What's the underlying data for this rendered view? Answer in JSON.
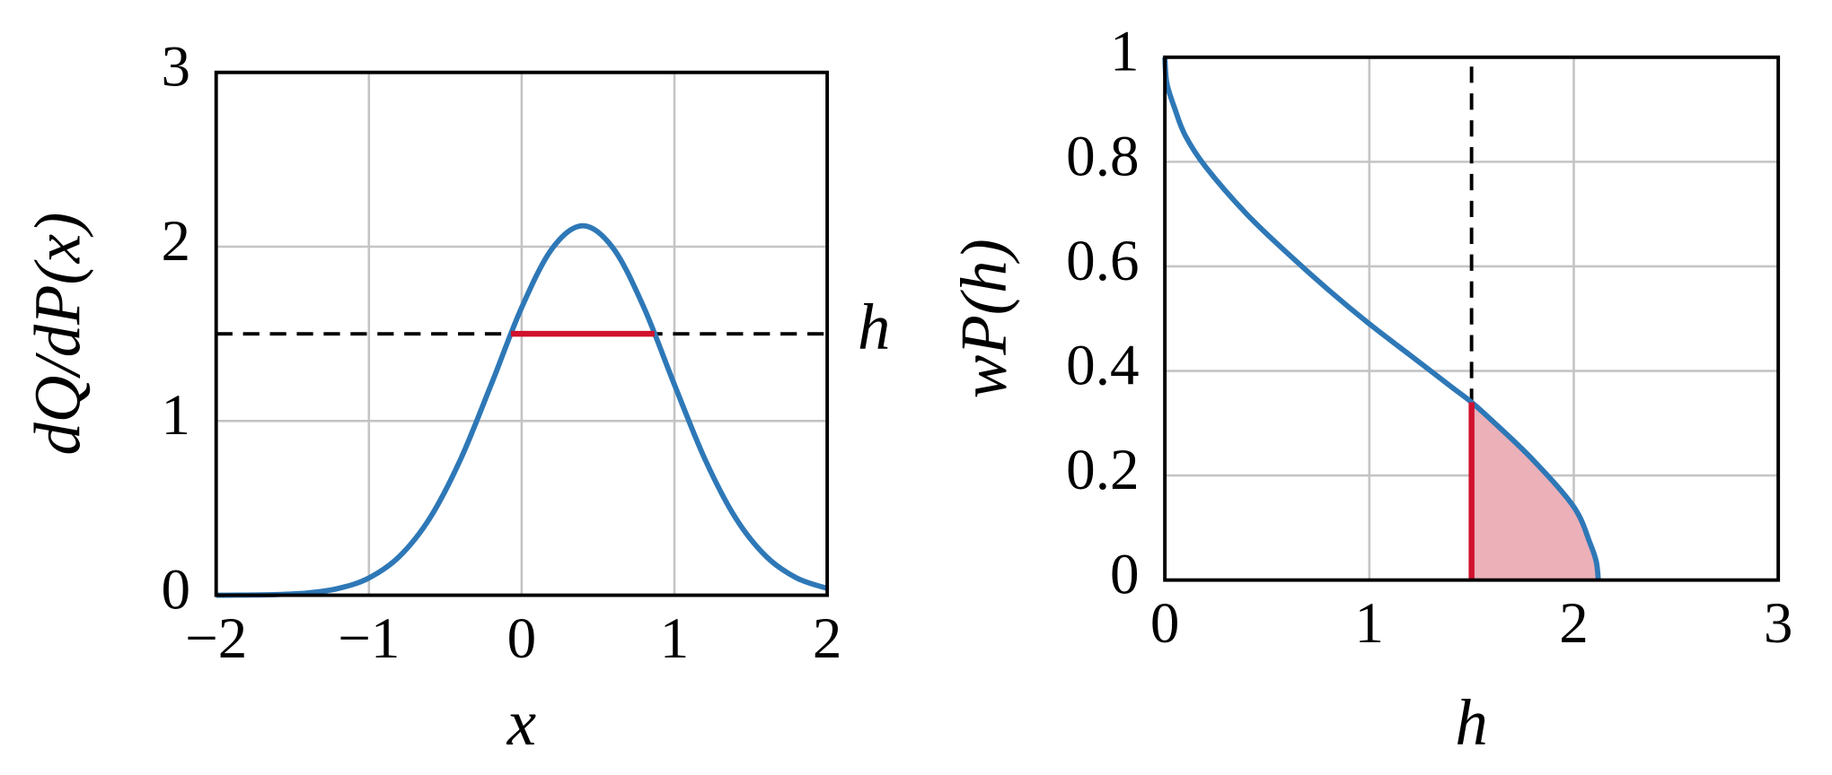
{
  "chart_data": [
    {
      "type": "line",
      "x_label": "x",
      "y_label": "dQ/dP(x)",
      "xlim": [
        -2,
        2
      ],
      "ylim": [
        0,
        3
      ],
      "xticks": [
        {
          "value": -2,
          "label": "−2"
        },
        {
          "value": -1,
          "label": "−1"
        },
        0,
        1,
        2
      ],
      "yticks": [
        0,
        1,
        2,
        3
      ],
      "grid": true,
      "x": [
        -2,
        -1.8,
        -1.6,
        -1.4,
        -1.2,
        -1,
        -0.8,
        -0.6,
        -0.4,
        -0.2,
        0,
        0.2,
        0.4,
        0.6,
        0.8,
        1,
        1.2,
        1.4,
        1.6,
        1.8,
        2
      ],
      "series": [
        {
          "color": "#2e78b7",
          "values": [
            0.0,
            0.001,
            0.004,
            0.013,
            0.039,
            0.099,
            0.223,
            0.444,
            0.78,
            1.208,
            1.651,
            1.99,
            2.12,
            1.99,
            1.651,
            1.208,
            0.78,
            0.444,
            0.223,
            0.099,
            0.039
          ]
        }
      ],
      "hline": {
        "y": 1.5,
        "label": "h",
        "color": "#000000"
      },
      "highlight": {
        "x": [
          -0.07,
          0.87
        ],
        "y": [
          1.5,
          1.5
        ],
        "color": "#d0122e"
      }
    },
    {
      "type": "line",
      "x_label": "h",
      "y_label": "wP(h)",
      "xlim": [
        0,
        3
      ],
      "ylim": [
        0,
        1
      ],
      "xticks": [
        0,
        1,
        2,
        3
      ],
      "yticks": [
        0,
        0.2,
        0.4,
        0.6,
        0.8,
        1
      ],
      "grid": true,
      "x": [
        0,
        0.01,
        0.05,
        0.1,
        0.2,
        0.4,
        0.6,
        0.8,
        1,
        1.2,
        1.4,
        1.5,
        1.6,
        1.8,
        2,
        2.08,
        2.11,
        2.12
      ],
      "series": [
        {
          "color": "#2e78b7",
          "values": [
            1,
            0.95,
            0.9,
            0.85,
            0.79,
            0.7,
            0.625,
            0.555,
            0.49,
            0.43,
            0.37,
            0.34,
            0.305,
            0.23,
            0.14,
            0.07,
            0.035,
            0
          ]
        }
      ],
      "vline": {
        "x": 1.5,
        "color": "#000000"
      },
      "highlight": {
        "x": [
          1.5,
          1.5
        ],
        "y": [
          0,
          0.34
        ],
        "color": "#d0122e"
      },
      "shade": {
        "from": 1.5,
        "color": "#ebb0b8"
      }
    }
  ]
}
